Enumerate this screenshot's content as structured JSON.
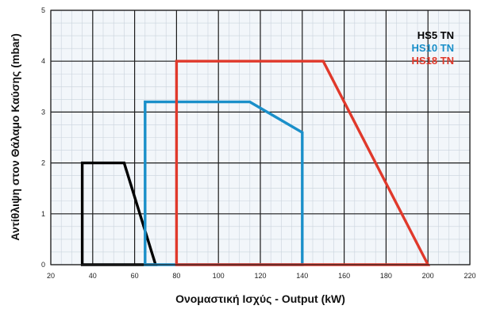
{
  "chart_data": {
    "type": "line",
    "xlabel": "Ονομαστική Ισχύς - Output (kW)",
    "ylabel": "Αντίθλιψη στον Θάλαμο Καύσης (mbar)",
    "xlim": [
      20,
      220
    ],
    "ylim": [
      0,
      5
    ],
    "xticks": [
      20,
      40,
      60,
      80,
      100,
      120,
      140,
      160,
      180,
      200,
      220
    ],
    "yticks": [
      0,
      1,
      2,
      3,
      4,
      5
    ],
    "grid": true,
    "legend_position": "top-right",
    "series": [
      {
        "name": "HS5 TN",
        "color": "#000000",
        "x": [
          35,
          35,
          55,
          70,
          35
        ],
        "y": [
          0,
          2,
          2,
          0,
          0
        ]
      },
      {
        "name": "HS10 TN",
        "color": "#1a8fc9",
        "x": [
          65,
          65,
          115,
          140,
          140,
          65
        ],
        "y": [
          0,
          3.2,
          3.2,
          2.6,
          0,
          0
        ]
      },
      {
        "name": "HS18 TN",
        "color": "#e0392b",
        "x": [
          80,
          80,
          150,
          200,
          80
        ],
        "y": [
          0,
          4,
          4,
          0,
          0
        ]
      }
    ]
  }
}
